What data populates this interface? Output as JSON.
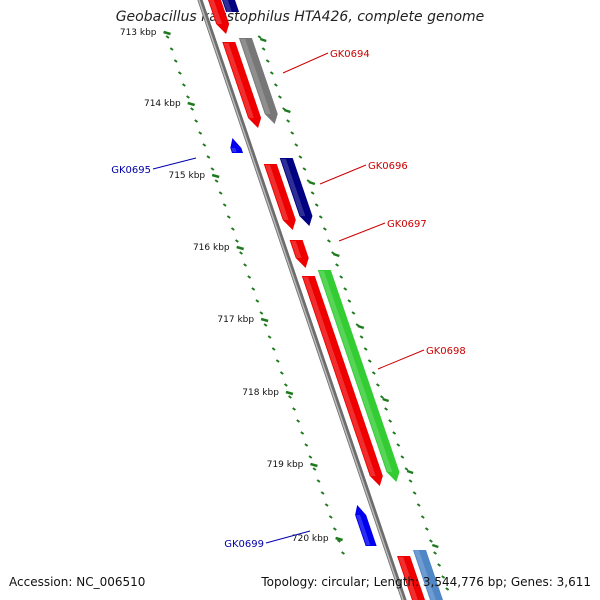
{
  "title": "Geobacillus kaustophilus HTA426, complete genome",
  "footer": {
    "accession": "Accession: NC_006510",
    "topology": "Topology: circular",
    "length": "Length: 3,544,776 bp",
    "genes": "Genes: 3,611"
  },
  "colors": {
    "backbone": "#888888",
    "tick": "#1f7a1f",
    "label_forward": "#cc0000",
    "label_reverse": "#0000aa"
  },
  "chart_data": {
    "type": "linear genome map",
    "ruler_unit": "kbp",
    "ruler_labels": [
      "713 kbp",
      "714 kbp",
      "715 kbp",
      "716 kbp",
      "717 kbp",
      "718 kbp",
      "719 kbp",
      "720 kbp"
    ],
    "genes": [
      {
        "id": "GK0694",
        "label": "GK0694",
        "strand": "forward",
        "color": "#777777"
      },
      {
        "id": "GK0695",
        "label": "GK0695",
        "strand": "reverse",
        "color": "#0000ee"
      },
      {
        "id": "GK0696",
        "label": "GK0696",
        "strand": "forward",
        "color": "#000080"
      },
      {
        "id": "GK0697",
        "label": "GK0697",
        "strand": "forward",
        "color": "#ee0000"
      },
      {
        "id": "GK0698",
        "label": "GK0698",
        "strand": "forward",
        "color": "#33cc33"
      },
      {
        "id": "GK0699",
        "label": "GK0699",
        "strand": "reverse",
        "color": "#0000ee"
      }
    ]
  }
}
